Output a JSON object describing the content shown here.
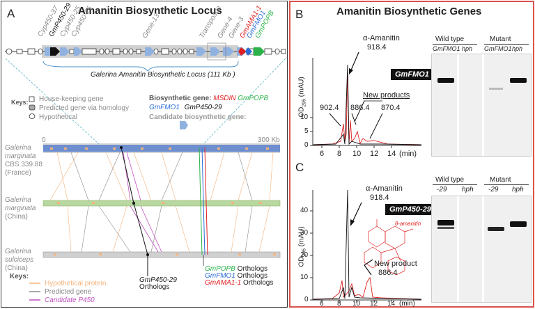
{
  "panel_a": {
    "letter": "A",
    "title": "Amanitin Biosynthetic Locus",
    "locus_label": "Galerina Amanitin Biosynthetic Locus (111 Kb )",
    "gene_labels": [
      "Cyp450-37",
      "GmP450-29",
      "Cyp450-25",
      "Cyp450-26",
      "Gene-13",
      "Transposon",
      "Gene-4",
      "Gene-3",
      "GmAMA1-1",
      "GmFMO1",
      "GmPOPB"
    ],
    "keys_title": "Keys:",
    "keys": [
      "House-keeping gene",
      "Predicted gene via homology",
      "Hypothetical"
    ],
    "biosynthetic_label": "Biosynthetic gene:",
    "biosynthetic_genes": [
      "MSDIN",
      "GmPOPB",
      "GmFMO1",
      "GmP450-29"
    ],
    "candidate_label": "Candidate biosynthetic gene:",
    "scale_start": "0",
    "scale_end": "300 Kb",
    "species": [
      {
        "line1": "Galerina",
        "line2": "marginata",
        "line3": "CBS 339.88",
        "line4": "(France)"
      },
      {
        "line1": "Galerina",
        "line2": "marginata",
        "line3": "(China)",
        "line4": ""
      },
      {
        "line1": "Galerina",
        "line2": "sulciceps",
        "line3": "(China)",
        "line4": ""
      }
    ],
    "ortholog_labels": {
      "p450": "GmP450-29",
      "p450_suffix": "Orthologs",
      "popb": "GmPOPB",
      "fmo": "GmFMO1",
      "ama": "GmAMA1-1",
      "suffix": "Orthologs"
    },
    "bottom_keys_title": "Keys:",
    "bottom_keys": [
      "Hypothetical protein",
      "Predicted gene",
      "Candidate P450"
    ]
  },
  "panel_bc": {
    "title": "Amanitin Biosynthetic Genes",
    "b": {
      "letter": "B",
      "peak_main": "α-Amanitin",
      "peak_main_mass": "918.4",
      "new_products": "New products",
      "masses": [
        "902.4",
        "886.4",
        "870.4"
      ],
      "badge": "GmFMO1",
      "ylabel": "OD",
      "ylabel_sub": "295",
      "ylabel_unit": "(mAU)",
      "yticks": [
        "0",
        "5",
        "10"
      ],
      "xticks": [
        "6",
        "8",
        "10",
        "12",
        "14"
      ],
      "xunit": "(min)",
      "gel_groups": [
        "Wild type",
        "Mutant"
      ],
      "gel_lanes": [
        "GmFMO1",
        "hph",
        "GmFMO1",
        "hph"
      ]
    },
    "c": {
      "letter": "C",
      "peak_main": "α-Amanitin",
      "peak_main_mass": "918.4",
      "new_product": "New product",
      "new_mass": "886.4",
      "badge": "GmP450-29",
      "structure_label": "θ-amanitin",
      "ylabel": "OD",
      "ylabel_sub": "295",
      "ylabel_unit": "(mAU)",
      "yticks": [
        "0",
        "10",
        "20",
        "30",
        "40"
      ],
      "xticks": [
        "6",
        "8",
        "10",
        "12",
        "14"
      ],
      "xunit": "(min)",
      "gel_groups": [
        "Wild type",
        "Mutant"
      ],
      "gel_lanes": [
        "-29",
        "hph",
        "-29",
        "hph"
      ]
    }
  },
  "colors": {
    "biosynthetic_red": "#e02020",
    "biosynthetic_green": "#2bb34a",
    "biosynthetic_blue": "#2a6dd9",
    "candidate_blue": "#8fb2e0",
    "hypothetical_orange": "#f5b27a",
    "candidate_purple": "#c050c0",
    "border_red": "#d9534f"
  }
}
